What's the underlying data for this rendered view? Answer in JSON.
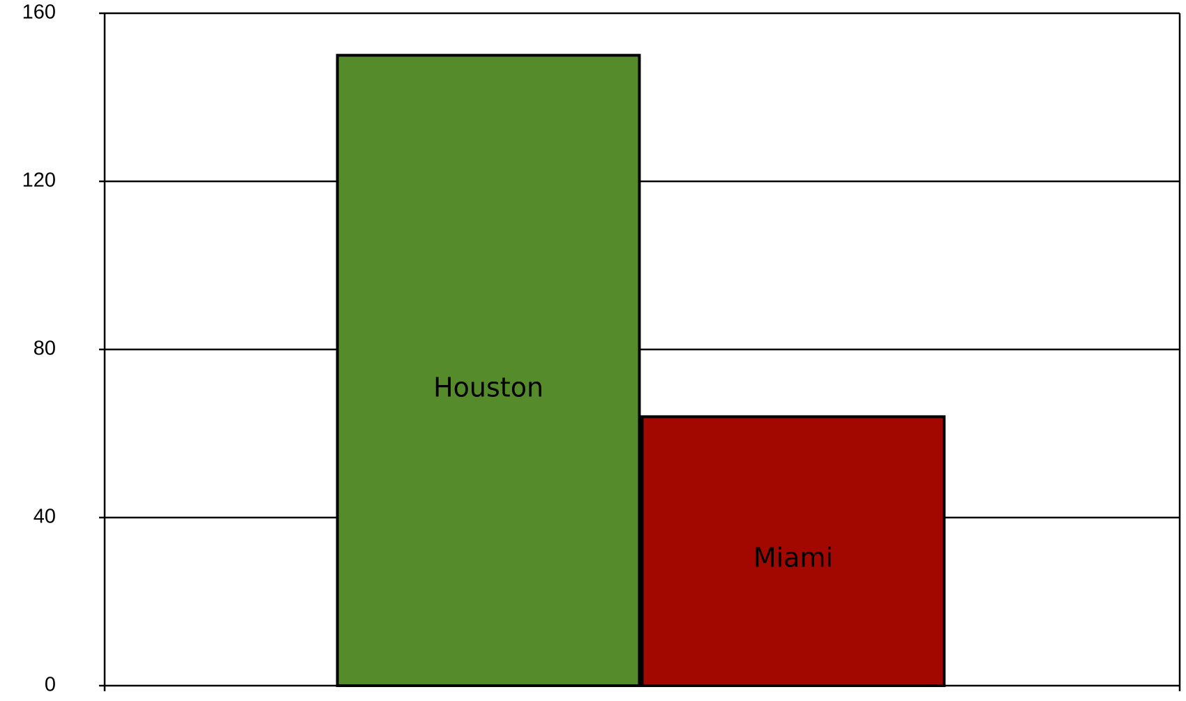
{
  "chart_data": {
    "type": "bar",
    "categories": [
      "Houston",
      "Miami"
    ],
    "values": [
      150,
      64
    ],
    "colors": [
      "#558b2b",
      "#a30800"
    ],
    "ylim": [
      0,
      160
    ],
    "yticks": [
      0,
      40,
      80,
      120,
      160
    ],
    "grid": true
  }
}
